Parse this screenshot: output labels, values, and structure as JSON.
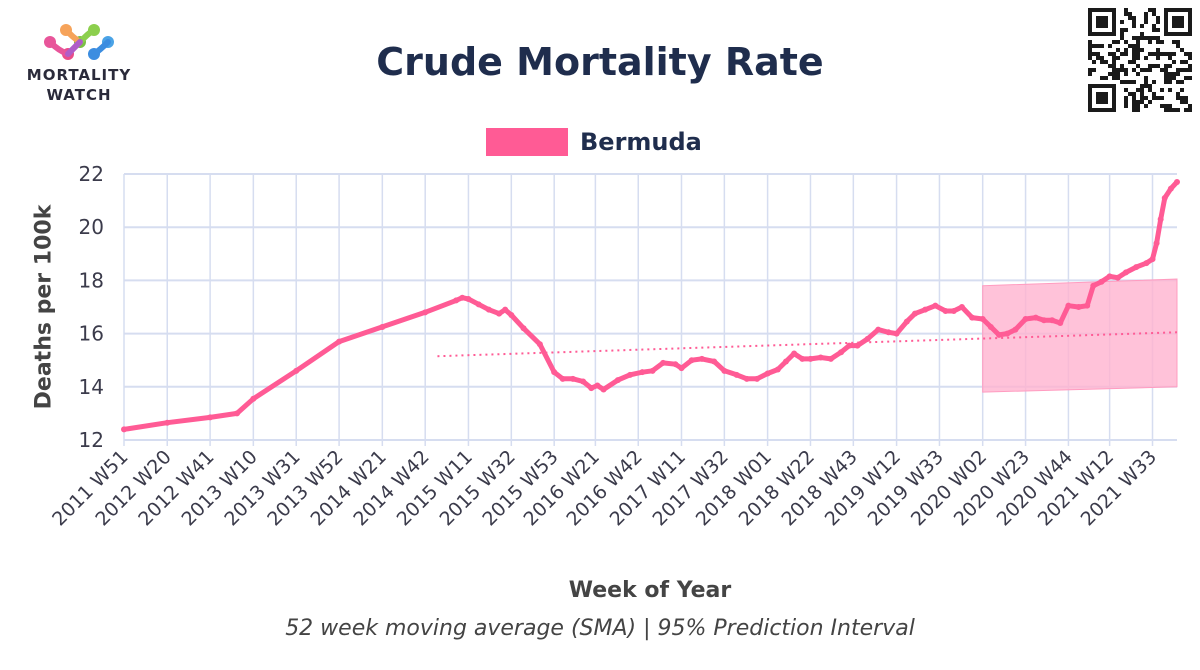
{
  "logo": {
    "line1": "MORTALITY",
    "line2": "WATCH"
  },
  "title": "Crude Mortality Rate",
  "subtitle": "52 week moving average (SMA) | 95% Prediction Interval",
  "legend": {
    "label": "Bermuda"
  },
  "colors": {
    "series": "#ff5b95",
    "interval_fill": "#ffb3cf",
    "grid": "#d6ddf0",
    "axis_text": "#3b3b4b",
    "title": "#1f2d4d"
  },
  "qr_icon": "qr-code-icon",
  "chart_data": {
    "type": "line",
    "title": "Crude Mortality Rate",
    "xlabel": "Week of Year",
    "ylabel": "Deaths per 100k",
    "ylim": [
      12,
      22
    ],
    "yticks": [
      12,
      14,
      16,
      18,
      20,
      22
    ],
    "grid": true,
    "legend_position": "top-center",
    "xtick_labels": [
      "2011 W51",
      "2012 W20",
      "2012 W41",
      "2013 W10",
      "2013 W31",
      "2013 W52",
      "2014 W21",
      "2014 W42",
      "2015 W11",
      "2015 W32",
      "2015 W53",
      "2016 W21",
      "2016 W42",
      "2017 W11",
      "2017 W32",
      "2018 W01",
      "2018 W22",
      "2018 W43",
      "2019 W12",
      "2019 W33",
      "2020 W02",
      "2020 W23",
      "2020 W44",
      "2021 W12",
      "2021 W33"
    ],
    "series": [
      {
        "name": "Bermuda",
        "points": [
          [
            "2011 W51",
            12.4
          ],
          [
            "2012 W20",
            12.65
          ],
          [
            "2012 W41",
            12.85
          ],
          [
            "2013 W02",
            13.0
          ],
          [
            "2013 W10",
            13.55
          ],
          [
            "2013 W31",
            14.6
          ],
          [
            "2013 W52",
            15.7
          ],
          [
            "2014 W21",
            16.25
          ],
          [
            "2014 W42",
            16.8
          ],
          [
            "2015 W05",
            17.25
          ],
          [
            "2015 W08",
            17.35
          ],
          [
            "2015 W11",
            17.3
          ],
          [
            "2015 W16",
            17.1
          ],
          [
            "2015 W21",
            16.9
          ],
          [
            "2015 W26",
            16.75
          ],
          [
            "2015 W29",
            16.9
          ],
          [
            "2015 W32",
            16.7
          ],
          [
            "2015 W38",
            16.2
          ],
          [
            "2015 W46",
            15.6
          ],
          [
            "2015 W53",
            14.55
          ],
          [
            "2016 W05",
            14.3
          ],
          [
            "2016 W10",
            14.3
          ],
          [
            "2016 W15",
            14.2
          ],
          [
            "2016 W19",
            13.95
          ],
          [
            "2016 W22",
            14.05
          ],
          [
            "2016 W25",
            13.9
          ],
          [
            "2016 W32",
            14.25
          ],
          [
            "2016 W38",
            14.45
          ],
          [
            "2016 W44",
            14.55
          ],
          [
            "2016 W49",
            14.6
          ],
          [
            "2017 W02",
            14.9
          ],
          [
            "2017 W08",
            14.85
          ],
          [
            "2017 W11",
            14.7
          ],
          [
            "2017 W16",
            15.0
          ],
          [
            "2017 W21",
            15.05
          ],
          [
            "2017 W27",
            14.95
          ],
          [
            "2017 W32",
            14.6
          ],
          [
            "2017 W38",
            14.45
          ],
          [
            "2017 W43",
            14.3
          ],
          [
            "2017 W48",
            14.3
          ],
          [
            "2018 W01",
            14.5
          ],
          [
            "2018 W06",
            14.65
          ],
          [
            "2018 W10",
            14.95
          ],
          [
            "2018 W14",
            15.25
          ],
          [
            "2018 W18",
            15.05
          ],
          [
            "2018 W22",
            15.05
          ],
          [
            "2018 W27",
            15.1
          ],
          [
            "2018 W32",
            15.05
          ],
          [
            "2018 W37",
            15.3
          ],
          [
            "2018 W41",
            15.55
          ],
          [
            "2018 W45",
            15.55
          ],
          [
            "2018 W50",
            15.8
          ],
          [
            "2019 W03",
            16.15
          ],
          [
            "2019 W08",
            16.05
          ],
          [
            "2019 W12",
            16.0
          ],
          [
            "2019 W17",
            16.45
          ],
          [
            "2019 W21",
            16.75
          ],
          [
            "2019 W26",
            16.9
          ],
          [
            "2019 W31",
            17.05
          ],
          [
            "2019 W36",
            16.85
          ],
          [
            "2019 W40",
            16.85
          ],
          [
            "2019 W44",
            17.0
          ],
          [
            "2019 W49",
            16.6
          ],
          [
            "2020 W02",
            16.55
          ],
          [
            "2020 W06",
            16.25
          ],
          [
            "2020 W10",
            15.95
          ],
          [
            "2020 W14",
            16.0
          ],
          [
            "2020 W18",
            16.15
          ],
          [
            "2020 W23",
            16.55
          ],
          [
            "2020 W28",
            16.6
          ],
          [
            "2020 W32",
            16.5
          ],
          [
            "2020 W36",
            16.5
          ],
          [
            "2020 W40",
            16.4
          ],
          [
            "2020 W44",
            17.05
          ],
          [
            "2020 W49",
            17.0
          ],
          [
            "2021 W01",
            17.05
          ],
          [
            "2021 W04",
            17.8
          ],
          [
            "2021 W08",
            17.95
          ],
          [
            "2021 W12",
            18.15
          ],
          [
            "2021 W16",
            18.1
          ],
          [
            "2021 W20",
            18.3
          ],
          [
            "2021 W25",
            18.5
          ],
          [
            "2021 W30",
            18.65
          ],
          [
            "2021 W33",
            18.8
          ],
          [
            "2021 W35",
            19.4
          ],
          [
            "2021 W37",
            20.3
          ],
          [
            "2021 W39",
            21.1
          ],
          [
            "2021 W42",
            21.45
          ],
          [
            "2021 W45",
            21.7
          ]
        ]
      }
    ],
    "trend_line": {
      "start": [
        "2014 W48",
        15.15
      ],
      "end": [
        "2021 W45",
        16.05
      ]
    },
    "prediction_interval": {
      "start_week": "2020 W02",
      "end_week": "2021 W45",
      "upper": [
        17.8,
        18.05
      ],
      "lower": [
        13.8,
        14.0
      ]
    }
  }
}
